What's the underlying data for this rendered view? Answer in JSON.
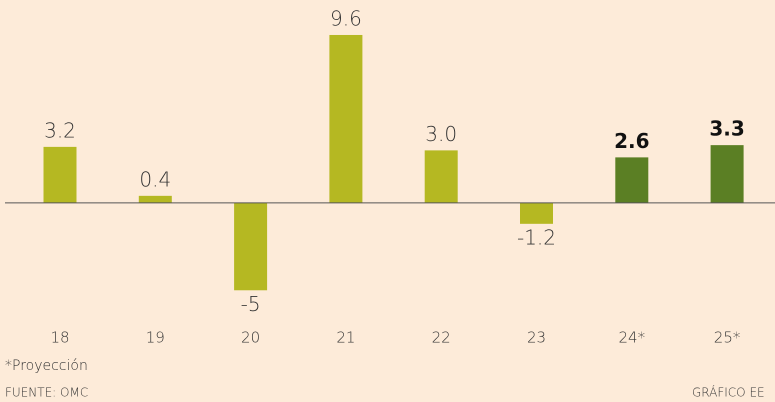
{
  "chart_data": {
    "type": "bar",
    "categories": [
      "18",
      "19",
      "20",
      "21",
      "22",
      "23",
      "24*",
      "25*"
    ],
    "values": [
      3.2,
      0.4,
      -5,
      9.6,
      3.0,
      -1.2,
      2.6,
      3.3
    ],
    "value_labels": [
      "3.2",
      "0.4",
      "-5",
      "9.6",
      "3.0",
      "-1.2",
      "2.6",
      "3.3"
    ],
    "colors": [
      "#b5b822",
      "#b5b822",
      "#b5b822",
      "#b5b822",
      "#b5b822",
      "#b5b822",
      "#5b7f24",
      "#5b7f24"
    ],
    "ylim": [
      -6.7,
      11.6
    ],
    "note": "*Proyección",
    "source": "FUENTE: OMC",
    "credit": "GRÁFICO EE"
  }
}
